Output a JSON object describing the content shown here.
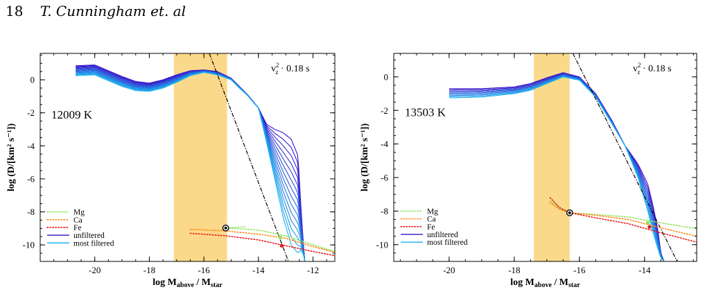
{
  "header": {
    "page_number": "18",
    "running_title": "T. Cunningham et. al"
  },
  "style": {
    "band_color": "#fbd98a",
    "unfiltered_color": "#3a0fc9",
    "most_filtered_color": "#18b2f0",
    "mg_color": "#8fe35a",
    "ca_color": "#ff8c1a",
    "fe_color": "#e81a1a",
    "asymptote_color": "#000000"
  },
  "chart_data": [
    {
      "type": "line",
      "annotation": "v<sub>z</sub>",
      "temperature_label": "12009 K",
      "ylabel": "log (D/[km² s⁻¹])",
      "xlabel": "log Mabove / Mstar",
      "xlim": [
        -22,
        -11.2
      ],
      "ylim": [
        -11,
        1.6
      ],
      "xticks": [
        -20,
        -18,
        -16,
        -14,
        -12
      ],
      "yticks": [
        0,
        -2,
        -4,
        -6,
        -8,
        -10
      ],
      "band": [
        -17.1,
        -15.15
      ],
      "n_curves": 14,
      "profile": {
        "x": [
          -20.7,
          -20.0,
          -19.0,
          -18.5,
          -18.0,
          -17.5,
          -17.0,
          -16.5,
          -16.0,
          -15.5,
          -15.0,
          -14.7,
          -14.4,
          -14.2,
          -14.0
        ],
        "top": [
          0.85,
          0.9,
          0.2,
          -0.1,
          -0.2,
          0.0,
          0.3,
          0.55,
          0.6,
          0.5,
          0.1,
          -0.4,
          -0.9,
          -1.3,
          -1.7
        ],
        "bottom": [
          0.25,
          0.3,
          -0.4,
          -0.65,
          -0.7,
          -0.5,
          -0.15,
          0.25,
          0.45,
          0.3,
          0.0,
          -0.5,
          -0.95,
          -1.35,
          -1.7
        ]
      },
      "tail": {
        "x": [
          -14.0,
          -13.7,
          -13.4,
          -13.1,
          -12.8,
          -12.55,
          -12.45,
          -12.35,
          -12.3
        ],
        "top": [
          -1.7,
          -2.7,
          -3.0,
          -3.2,
          -3.6,
          -4.6,
          -7.5,
          -10.0,
          -11.0
        ],
        "bottom": [
          -1.7,
          -3.8,
          -6.0,
          -8.3,
          -10.0,
          -10.5,
          -10.3,
          -10.6,
          -11.0
        ]
      },
      "asymptote": {
        "x": [
          -15.8,
          -12.9
        ],
        "y": [
          1.6,
          -11.0
        ]
      },
      "series": [
        {
          "name": "Mg",
          "style": "dotted",
          "x": [
            -14.5,
            -15.2,
            -14.0,
            -13.0,
            -12.0,
            -11.2
          ],
          "y": [
            -8.9,
            -8.98,
            -9.1,
            -9.45,
            -10.0,
            -10.4
          ]
        },
        {
          "name": "Ca",
          "style": "dotted",
          "x": [
            -16.5,
            -15.2,
            -14.0,
            -13.0,
            -12.0,
            -11.2
          ],
          "y": [
            -9.05,
            -9.15,
            -9.35,
            -9.6,
            -10.1,
            -10.45
          ]
        },
        {
          "name": "Fe",
          "style": "dotted",
          "x": [
            -16.5,
            -15.2,
            -14.0,
            -13.0,
            -12.0,
            -11.2
          ],
          "y": [
            -9.3,
            -9.45,
            -9.7,
            -10.05,
            -10.4,
            -10.65
          ]
        },
        {
          "name": "unfiltered"
        },
        {
          "name": "most filtered"
        }
      ],
      "markers": [
        {
          "x": -15.2,
          "y": -8.98,
          "kind": "ring"
        },
        {
          "x": -13.2,
          "y": -9.55,
          "kind": "mg"
        },
        {
          "x": -13.15,
          "y": -10.05,
          "kind": "fe"
        }
      ]
    },
    {
      "type": "line",
      "annotation": "v<sub>z</sub>",
      "temperature_label": "13503 K",
      "ylabel": "log (D/[km² s⁻¹])",
      "xlabel": "log Mabove / Mstar",
      "xlim": [
        -21.7,
        -12.4
      ],
      "ylim": [
        -11,
        1.4
      ],
      "xticks": [
        -20,
        -18,
        -16,
        -14
      ],
      "yticks": [
        0,
        -2,
        -4,
        -6,
        -8,
        -10
      ],
      "band": [
        -17.4,
        -16.3
      ],
      "n_curves": 9,
      "profile": {
        "x": [
          -20.0,
          -19.0,
          -18.0,
          -17.5,
          -17.0,
          -16.5,
          -16.0,
          -15.5,
          -15.0,
          -14.6
        ],
        "top": [
          -0.7,
          -0.7,
          -0.6,
          -0.4,
          -0.05,
          0.25,
          0.0,
          -1.0,
          -2.6,
          -4.1
        ],
        "bottom": [
          -1.25,
          -1.2,
          -1.0,
          -0.8,
          -0.4,
          0.0,
          -0.2,
          -1.2,
          -2.8,
          -4.1
        ]
      },
      "tail": {
        "x": [
          -14.6,
          -14.2,
          -13.9,
          -13.75,
          -13.6,
          -13.5,
          -13.4
        ],
        "top": [
          -4.1,
          -5.2,
          -6.4,
          -7.6,
          -9.0,
          -10.5,
          -11.0
        ],
        "bottom": [
          -4.1,
          -6.0,
          -8.0,
          -9.2,
          -10.2,
          -10.8,
          -11.0
        ]
      },
      "asymptote": {
        "x": [
          -16.2,
          -13.0
        ],
        "y": [
          1.4,
          -11.0
        ]
      },
      "series": [
        {
          "name": "Mg",
          "style": "dotted",
          "x": [
            -16.9,
            -16.6,
            -16.3,
            -15.5,
            -14.5,
            -13.5,
            -12.4
          ],
          "y": [
            -7.4,
            -7.85,
            -8.1,
            -8.2,
            -8.35,
            -8.7,
            -9.05
          ]
        },
        {
          "name": "Ca",
          "style": "dotted",
          "x": [
            -16.9,
            -16.6,
            -16.3,
            -15.5,
            -14.5,
            -13.5,
            -12.4
          ],
          "y": [
            -7.5,
            -7.9,
            -8.1,
            -8.25,
            -8.5,
            -9.0,
            -9.5
          ]
        },
        {
          "name": "Fe",
          "style": "dotted",
          "x": [
            -16.9,
            -16.6,
            -16.3,
            -15.5,
            -14.5,
            -13.5,
            -12.4
          ],
          "y": [
            -7.2,
            -7.8,
            -8.1,
            -8.4,
            -8.75,
            -9.3,
            -9.85
          ]
        },
        {
          "name": "unfiltered"
        },
        {
          "name": "most filtered"
        }
      ],
      "markers": [
        {
          "x": -16.3,
          "y": -8.1,
          "kind": "ring"
        },
        {
          "x": -13.9,
          "y": -8.7,
          "kind": "mg"
        },
        {
          "x": -13.85,
          "y": -8.95,
          "kind": "fe"
        }
      ]
    }
  ]
}
